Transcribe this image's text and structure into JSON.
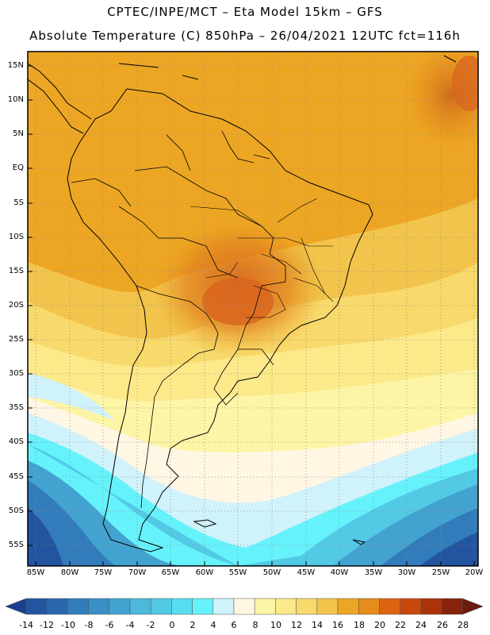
{
  "header": {
    "line1": "CPTEC/INPE/MCT –  Eta Model 15km – GFS",
    "line2": "Absolute Temperature (C) 850hPa – 26/04/2021 12UTC fct=116h"
  },
  "map": {
    "lat_ticks": [
      "15N",
      "10N",
      "5N",
      "EQ",
      "5S",
      "10S",
      "15S",
      "20S",
      "25S",
      "30S",
      "35S",
      "40S",
      "45S",
      "50S",
      "55S"
    ],
    "lon_ticks": [
      "85W",
      "80W",
      "75W",
      "70W",
      "65W",
      "60W",
      "55W",
      "50W",
      "45W",
      "40W",
      "35W",
      "30W",
      "25W",
      "20W"
    ]
  },
  "colorbar": {
    "labels": [
      "-14",
      "-12",
      "-10",
      "-8",
      "-6",
      "-4",
      "-2",
      "0",
      "2",
      "4",
      "6",
      "8",
      "10",
      "12",
      "14",
      "16",
      "18",
      "20",
      "22",
      "24",
      "26",
      "28"
    ],
    "colors": [
      "#1a3f8e",
      "#23549f",
      "#2b67ad",
      "#327cbb",
      "#3a8fc6",
      "#43a3d0",
      "#4db8dc",
      "#52cae6",
      "#58def0",
      "#66f2fb",
      "#d0f2fb",
      "#fff6e3",
      "#fdf5a6",
      "#fbe98a",
      "#f8d96b",
      "#f2c44c",
      "#eda623",
      "#e68c1a",
      "#dc6410",
      "#c8480c",
      "#ab3209",
      "#87230a",
      "#6a1a0e"
    ]
  }
}
